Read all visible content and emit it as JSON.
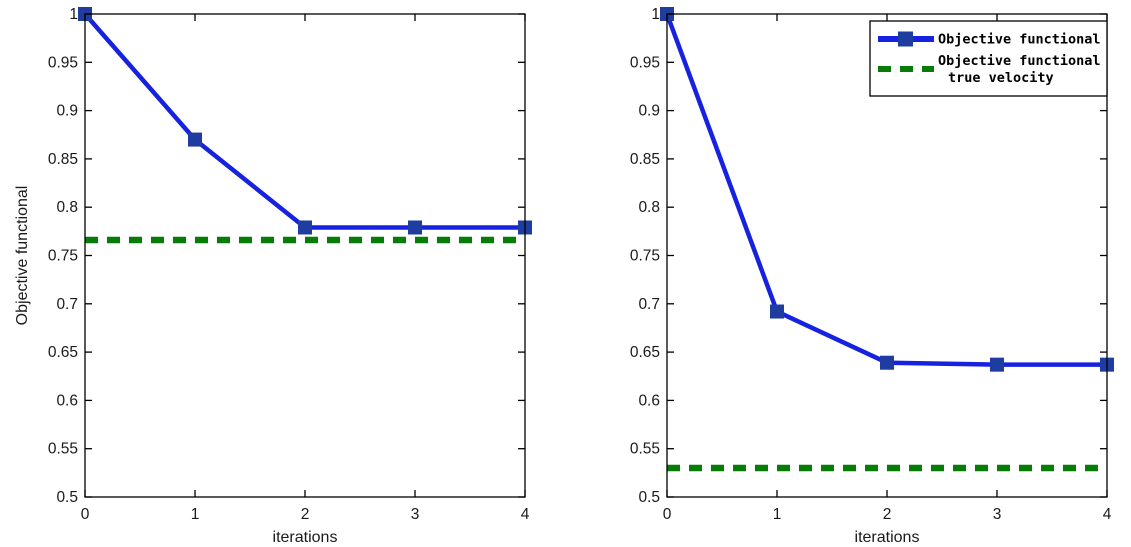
{
  "figure": {
    "background": "#ffffff"
  },
  "colors": {
    "line_blue": "#1722e0",
    "marker_navy": "#1f3da0",
    "dash_green": "#077c07",
    "axis": "#000000",
    "tick_text": "#1a1a1a",
    "legend_border": "#000000",
    "legend_background": "#ffffff"
  },
  "chart_data": [
    {
      "type": "line",
      "panel": "left",
      "title": "",
      "xlabel": "iterations",
      "ylabel": "Objective functional",
      "xlim": [
        0,
        4
      ],
      "ylim": [
        0.5,
        1.0
      ],
      "grid": false,
      "x": [
        0,
        1,
        2,
        3,
        4
      ],
      "xticks": [
        0,
        1,
        2,
        3,
        4
      ],
      "xtick_labels": [
        "0",
        "1",
        "2",
        "3",
        "4"
      ],
      "yticks": [
        0.5,
        0.55,
        0.6,
        0.65,
        0.7,
        0.75,
        0.8,
        0.85,
        0.9,
        0.95,
        1.0
      ],
      "ytick_labels": [
        "0.5",
        "0.55",
        "0.6",
        "0.65",
        "0.7",
        "0.75",
        "0.8",
        "0.85",
        "0.9",
        "0.95",
        "1"
      ],
      "legend": null,
      "series": [
        {
          "name": "Objective functional",
          "style": "solid",
          "marker": "square",
          "values": [
            1.0,
            0.87,
            0.779,
            0.779,
            0.779
          ]
        },
        {
          "name": "Objective functional true velocity",
          "style": "dashed",
          "marker": "none",
          "values": [
            0.766,
            0.766,
            0.766,
            0.766,
            0.766
          ]
        }
      ]
    },
    {
      "type": "line",
      "panel": "right",
      "title": "",
      "xlabel": "iterations",
      "ylabel": "",
      "xlim": [
        0,
        4
      ],
      "ylim": [
        0.5,
        1.0
      ],
      "grid": false,
      "x": [
        0,
        1,
        2,
        3,
        4
      ],
      "xticks": [
        0,
        1,
        2,
        3,
        4
      ],
      "xtick_labels": [
        "0",
        "1",
        "2",
        "3",
        "4"
      ],
      "yticks": [
        0.5,
        0.55,
        0.6,
        0.65,
        0.7,
        0.75,
        0.8,
        0.85,
        0.9,
        0.95,
        1.0
      ],
      "ytick_labels": [
        "0.5",
        "0.55",
        "0.6",
        "0.65",
        "0.7",
        "0.75",
        "0.8",
        "0.85",
        "0.9",
        "0.95",
        "1"
      ],
      "legend": {
        "position": "top-right",
        "entries": [
          {
            "label_lines": [
              "Objective functional"
            ],
            "sample": "blue-solid-square"
          },
          {
            "label_lines": [
              "Objective functional",
              "true velocity"
            ],
            "sample": "green-dashed"
          }
        ]
      },
      "series": [
        {
          "name": "Objective functional",
          "style": "solid",
          "marker": "square",
          "values": [
            1.0,
            0.692,
            0.639,
            0.637,
            0.637
          ]
        },
        {
          "name": "Objective functional true velocity",
          "style": "dashed",
          "marker": "none",
          "values": [
            0.53,
            0.53,
            0.53,
            0.53,
            0.53
          ]
        }
      ]
    }
  ]
}
